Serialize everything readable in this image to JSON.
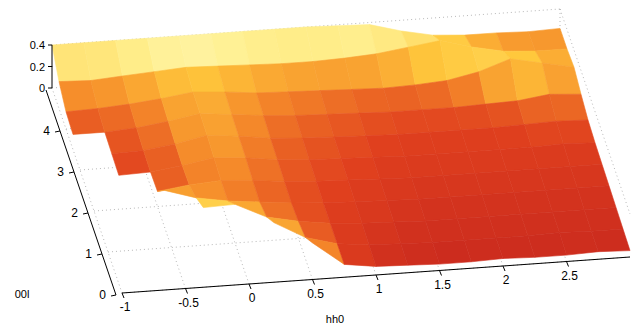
{
  "chart_data": {
    "type": "surface",
    "x_label": "hh0",
    "y_label": "00l",
    "xlim": [
      -1,
      3
    ],
    "ylim": [
      0,
      5
    ],
    "zlim": [
      0,
      0.4
    ],
    "xticks": [
      -1,
      -0.5,
      0,
      0.5,
      1,
      1.5,
      2,
      2.5
    ],
    "yticks": [
      0,
      1,
      2,
      3,
      4
    ],
    "zticks": [
      0,
      0.2,
      0.4
    ],
    "grid": true,
    "x": [
      -1,
      -0.75,
      -0.5,
      -0.25,
      0,
      0.25,
      0.5,
      0.75,
      1,
      1.25,
      1.5,
      1.75,
      2,
      2.25,
      2.5,
      2.75,
      3
    ],
    "y": [
      0,
      0.5,
      1,
      1.5,
      2,
      2.5,
      3,
      3.5,
      4,
      4.5,
      5
    ],
    "z": [
      [
        null,
        null,
        null,
        null,
        null,
        null,
        0.34,
        0.12,
        0.08,
        0.07,
        0.06,
        0.06,
        0.07,
        0.06,
        0.06,
        0.07,
        0.06
      ],
      [
        null,
        null,
        null,
        null,
        null,
        0.36,
        0.2,
        0.12,
        0.09,
        0.08,
        0.07,
        0.07,
        0.07,
        0.07,
        0.08,
        0.07,
        0.07
      ],
      [
        null,
        null,
        null,
        0.35,
        0.36,
        0.22,
        0.16,
        0.12,
        0.1,
        0.09,
        0.08,
        0.08,
        0.08,
        0.08,
        0.08,
        0.08,
        0.08
      ],
      [
        null,
        null,
        0.34,
        0.25,
        0.2,
        0.17,
        0.14,
        0.12,
        0.11,
        0.1,
        0.09,
        0.09,
        0.09,
        0.09,
        0.09,
        0.09,
        0.09
      ],
      [
        null,
        null,
        0.14,
        0.18,
        0.2,
        0.18,
        0.15,
        0.13,
        0.12,
        0.11,
        0.1,
        0.1,
        0.1,
        0.1,
        0.1,
        0.1,
        0.1
      ],
      [
        null,
        0.12,
        0.13,
        0.17,
        0.22,
        0.2,
        0.16,
        0.14,
        0.13,
        0.12,
        0.11,
        0.11,
        0.11,
        0.11,
        0.11,
        0.12,
        0.11
      ],
      [
        null,
        0.13,
        0.14,
        0.18,
        0.24,
        0.21,
        0.17,
        0.15,
        0.14,
        0.13,
        0.12,
        0.12,
        0.12,
        0.12,
        0.13,
        0.14,
        0.13
      ],
      [
        0.14,
        0.14,
        0.16,
        0.2,
        0.25,
        0.22,
        0.19,
        0.17,
        0.16,
        0.15,
        0.14,
        0.14,
        0.14,
        0.15,
        0.16,
        0.2,
        0.18
      ],
      [
        0.16,
        0.17,
        0.19,
        0.22,
        0.26,
        0.24,
        0.21,
        0.2,
        0.19,
        0.18,
        0.17,
        0.18,
        0.2,
        0.26,
        0.36,
        0.3,
        0.24
      ],
      [
        0.25,
        0.24,
        0.26,
        0.28,
        0.3,
        0.29,
        0.28,
        0.27,
        0.27,
        0.28,
        0.3,
        0.34,
        0.38,
        0.3,
        0.24,
        0.22,
        0.22
      ],
      [
        0.4,
        0.4,
        0.4,
        0.4,
        0.4,
        0.4,
        0.4,
        0.4,
        0.4,
        0.39,
        0.38,
        0.3,
        0.24,
        0.22,
        0.22,
        0.21,
        0.22
      ]
    ]
  }
}
